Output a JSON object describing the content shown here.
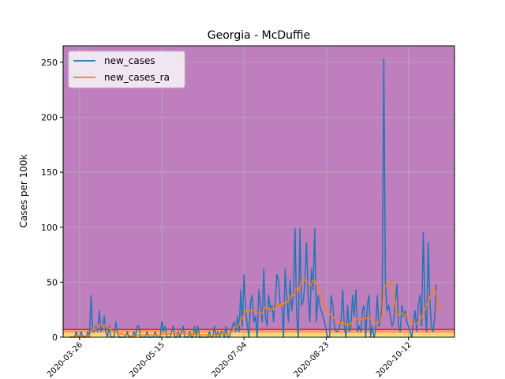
{
  "chart_data": {
    "type": "line",
    "title": "Georgia - McDuffie",
    "xlabel": "",
    "ylabel": "Cases per 100k",
    "xlim": [
      "2020-03-16",
      "2020-11-09"
    ],
    "ylim": [
      0,
      265
    ],
    "y_ticks": [
      0,
      50,
      100,
      150,
      200,
      250
    ],
    "x_ticks": [
      "2020-03-26",
      "2020-05-15",
      "2020-07-04",
      "2020-08-23",
      "2020-10-12"
    ],
    "x_tick_rotation": 45,
    "grid": true,
    "legend_position": "top-left",
    "background_bands": [
      {
        "from": 0,
        "to": 1,
        "color": "#ffff99"
      },
      {
        "from": 1,
        "to": 4,
        "color": "#ffd37a"
      },
      {
        "from": 4,
        "to": 7,
        "color": "#ff9966"
      },
      {
        "from": 7,
        "to": 265,
        "color": "#bf7fbf"
      }
    ],
    "threshold_line": {
      "value": 7,
      "color": "#d8243c"
    },
    "series": [
      {
        "name": "new_cases",
        "color": "#1f77b4",
        "start_date": "2020-03-20",
        "values": [
          0,
          0,
          0,
          0,
          5,
          0,
          0,
          5,
          0,
          0,
          0,
          5,
          0,
          38,
          5,
          5,
          10,
          5,
          24,
          5,
          10,
          19,
          5,
          0,
          10,
          0,
          0,
          0,
          14,
          5,
          0,
          0,
          0,
          0,
          0,
          5,
          0,
          0,
          0,
          5,
          0,
          10,
          10,
          0,
          0,
          0,
          0,
          5,
          0,
          0,
          0,
          0,
          5,
          0,
          0,
          0,
          14,
          5,
          10,
          0,
          0,
          0,
          5,
          10,
          0,
          0,
          5,
          0,
          5,
          10,
          0,
          0,
          0,
          5,
          0,
          0,
          10,
          0,
          10,
          0,
          0,
          0,
          0,
          0,
          0,
          5,
          0,
          0,
          10,
          0,
          5,
          0,
          5,
          5,
          0,
          10,
          0,
          0,
          5,
          10,
          14,
          5,
          19,
          5,
          43,
          10,
          57,
          24,
          10,
          0,
          33,
          38,
          14,
          19,
          0,
          43,
          29,
          14,
          62,
          19,
          10,
          38,
          24,
          29,
          14,
          33,
          57,
          52,
          29,
          29,
          0,
          62,
          38,
          14,
          52,
          24,
          38,
          99,
          19,
          0,
          99,
          29,
          33,
          48,
          86,
          38,
          14,
          62,
          43,
          99,
          14,
          38,
          29,
          24,
          19,
          14,
          5,
          0,
          0,
          38,
          29,
          10,
          5,
          5,
          10,
          14,
          43,
          10,
          0,
          29,
          5,
          10,
          38,
          19,
          43,
          5,
          10,
          5,
          24,
          29,
          0,
          29,
          38,
          0,
          10,
          0,
          5,
          38,
          10,
          14,
          29,
          253,
          48,
          24,
          29,
          19,
          10,
          14,
          33,
          48,
          10,
          5,
          29,
          19,
          24,
          14,
          10,
          5,
          0,
          14,
          24,
          5,
          29,
          38,
          10,
          95,
          29,
          5,
          86,
          33,
          10,
          5,
          19,
          48
        ]
      },
      {
        "name": "new_cases_ra",
        "color": "#ff7f0e",
        "start_date": "2020-03-20",
        "values": [
          0,
          0,
          0,
          0,
          1,
          1,
          1,
          1,
          1,
          1,
          1,
          1,
          1,
          6,
          7,
          7,
          8,
          9,
          12,
          11,
          10,
          11,
          10,
          9,
          8,
          7,
          6,
          5,
          4,
          4,
          3,
          3,
          3,
          2,
          2,
          2,
          2,
          1,
          1,
          1,
          1,
          2,
          2,
          2,
          2,
          2,
          2,
          2,
          2,
          2,
          2,
          2,
          2,
          2,
          2,
          2,
          3,
          3,
          3,
          3,
          3,
          3,
          3,
          3,
          3,
          3,
          3,
          3,
          3,
          3,
          3,
          3,
          3,
          3,
          3,
          2,
          3,
          2,
          2,
          2,
          2,
          2,
          2,
          2,
          2,
          1,
          1,
          1,
          2,
          2,
          2,
          2,
          2,
          3,
          3,
          3,
          3,
          3,
          4,
          6,
          8,
          9,
          10,
          11,
          16,
          17,
          21,
          24,
          24,
          24,
          24,
          25,
          24,
          23,
          22,
          22,
          22,
          21,
          26,
          27,
          25,
          27,
          25,
          26,
          25,
          26,
          30,
          30,
          30,
          28,
          30,
          32,
          32,
          33,
          38,
          37,
          38,
          43,
          44,
          41,
          47,
          50,
          54,
          52,
          51,
          50,
          47,
          48,
          52,
          52,
          48,
          45,
          40,
          36,
          33,
          27,
          25,
          22,
          22,
          20,
          19,
          17,
          15,
          14,
          13,
          13,
          14,
          12,
          11,
          12,
          11,
          12,
          14,
          15,
          17,
          16,
          16,
          15,
          17,
          18,
          17,
          17,
          19,
          16,
          15,
          13,
          12,
          14,
          13,
          15,
          19,
          44,
          47,
          48,
          49,
          50,
          49,
          40,
          30,
          21,
          20,
          21,
          22,
          21,
          20,
          20,
          18,
          16,
          13,
          12,
          11,
          12,
          14,
          16,
          18,
          22,
          25,
          29,
          32,
          36,
          41,
          44,
          42,
          40,
          30,
          22
        ]
      }
    ]
  }
}
